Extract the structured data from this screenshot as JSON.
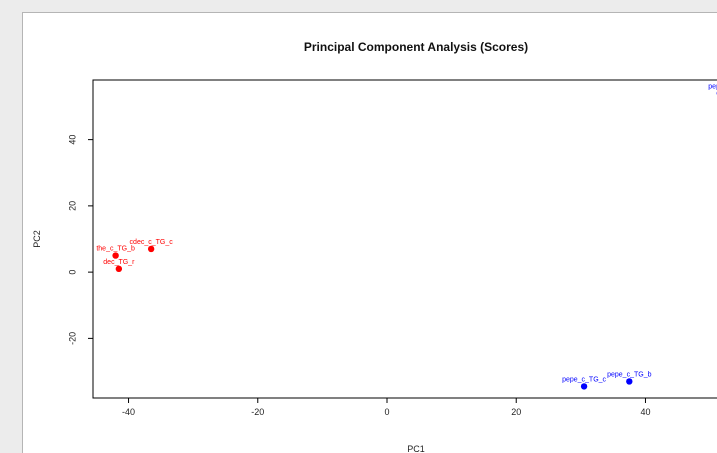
{
  "chart_data": {
    "type": "scatter",
    "title": "Principal Component Analysis (Scores)",
    "xlabel": "PC1",
    "ylabel": "PC2",
    "xlim": [
      -45.5,
      52
    ],
    "ylim": [
      -38,
      58
    ],
    "xticks": [
      -40,
      -20,
      0,
      20,
      40
    ],
    "yticks": [
      -20,
      0,
      20,
      40
    ],
    "grid": false,
    "series": [
      {
        "color": "#ff0000",
        "points": [
          {
            "x": -36.5,
            "y": 7,
            "label": "cdec_c_TG_c"
          },
          {
            "x": -42,
            "y": 5,
            "label": "the_c_TG_b"
          },
          {
            "x": -41.5,
            "y": 1,
            "label": "dec_TG_r"
          }
        ]
      },
      {
        "color": "#0000ff",
        "points": [
          {
            "x": 51.5,
            "y": 54,
            "label": "pepe_c"
          },
          {
            "x": 37.5,
            "y": -33,
            "label": "pepe_c_TG_b"
          },
          {
            "x": 30.5,
            "y": -34.5,
            "label": "pepe_c_TG_c"
          }
        ]
      }
    ]
  }
}
